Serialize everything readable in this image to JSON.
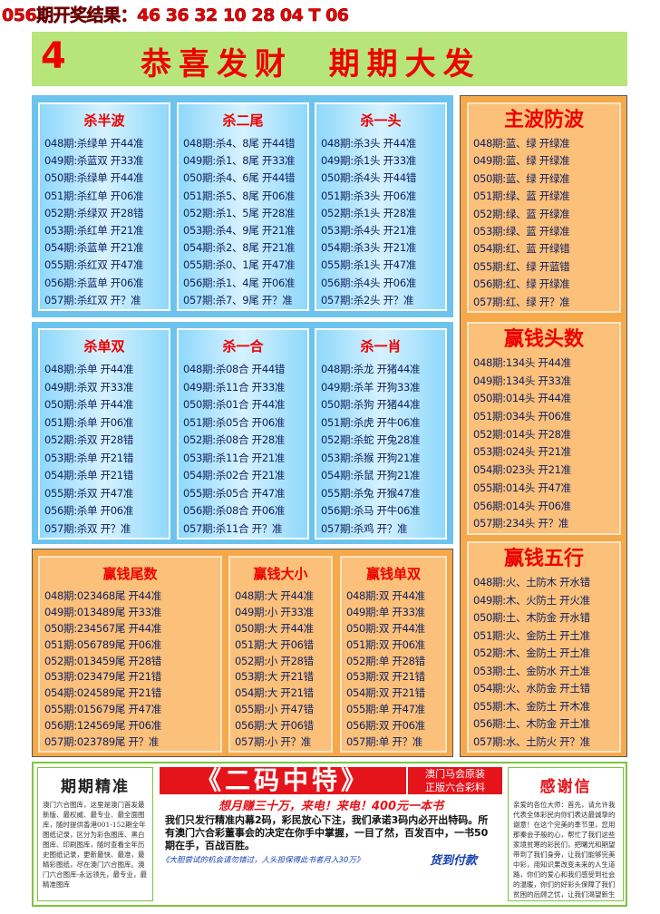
{
  "header": {
    "result": "056期开奖结果：46 36 32 10 28 04 T 06"
  },
  "banner": {
    "number": "4",
    "title": "恭喜发财  期期大发"
  },
  "panels": [
    {
      "title": "杀半波",
      "rows": [
        "048期:杀绿单 开44准",
        "049期:杀蓝双 开33准",
        "050期:杀绿单 开44准",
        "051期:杀红单 开06准",
        "052期:杀绿双 开28错",
        "053期:杀红单 开21准",
        "054期:杀蓝单 开21准",
        "055期:杀红双 开47准",
        "056期:杀蓝单 开06准",
        "057期:杀红双 开？准"
      ]
    },
    {
      "title": "杀二尾",
      "rows": [
        "048期:杀4、8尾 开44错",
        "049期:杀1、8尾 开33准",
        "050期:杀4、6尾 开44错",
        "051期:杀5、8尾 开06准",
        "052期:杀1、5尾 开28准",
        "053期:杀4、9尾 开21准",
        "054期:杀2、8尾 开21准",
        "055期:杀0、1尾 开47准",
        "056期:杀1、4尾 开06准",
        "057期:杀7、9尾 开？准"
      ]
    },
    {
      "title": "杀一头",
      "rows": [
        "048期:杀3头 开44准",
        "049期:杀1头 开33准",
        "050期:杀4头 开44错",
        "051期:杀3头 开06准",
        "052期:杀1头 开28准",
        "053期:杀4头 开21准",
        "054期:杀3头 开21准",
        "055期:杀1头 开47准",
        "056期:杀4头 开06准",
        "057期:杀2头 开？准"
      ]
    },
    {
      "title": "杀单双",
      "rows": [
        "048期:杀单 开44准",
        "049期:杀双 开33准",
        "050期:杀单 开44准",
        "051期:杀单 开06准",
        "052期:杀双 开28错",
        "053期:杀单 开21错",
        "054期:杀单 开21错",
        "055期:杀双 开47准",
        "056期:杀单 开06准",
        "057期:杀双 开？准"
      ]
    },
    {
      "title": "杀一合",
      "rows": [
        "048期:杀08合 开44错",
        "049期:杀11合 开33准",
        "050期:杀01合 开44准",
        "051期:杀05合 开06准",
        "052期:杀08合 开28准",
        "053期:杀11合 开21准",
        "054期:杀02合 开21准",
        "055期:杀05合 开47准",
        "056期:杀08合 开06准",
        "057期:杀11合 开？准"
      ]
    },
    {
      "title": "杀一肖",
      "rows": [
        "048期:杀龙 开猪44准",
        "049期:杀羊 开狗33准",
        "050期:杀狗 开猪44准",
        "051期:杀虎 开牛06准",
        "052期:杀蛇 开兔28准",
        "053期:杀猴 开狗21准",
        "054期:杀鼠 开狗21准",
        "055期:杀兔 开猴47准",
        "056期:杀马 开牛06准",
        "057期:杀鸡 开？准"
      ]
    },
    {
      "title": "主波防波",
      "rows": [
        "048期:蓝、绿 开绿准",
        "049期:蓝、绿 开绿准",
        "050期:蓝、绿 开绿准",
        "051期:绿、蓝 开绿准",
        "052期:绿、蓝 开绿准",
        "053期:绿、蓝 开绿准",
        "054期:红、蓝 开绿错",
        "055期:红、绿 开蓝错",
        "056期:红、绿 开绿准",
        "057期:红、绿 开？准"
      ]
    },
    {
      "title": "赢钱头数",
      "rows": [
        "048期:134头 开44准",
        "049期:134头 开33准",
        "050期:014头 开44准",
        "051期:034头 开06准",
        "052期:014头 开28准",
        "053期:024头 开21准",
        "054期:023头 开21准",
        "055期:014头 开47准",
        "056期:014头 开06准",
        "057期:234头 开？准"
      ]
    },
    {
      "title": "赢钱五行",
      "rows": [
        "048期:火、土防木 开水错",
        "049期:木、火防土 开火准",
        "050期:土、木防金 开水错",
        "051期:火、金防土 开土准",
        "052期:木、金防土 开土准",
        "053期:土、金防水 开土准",
        "054期:火、水防金 开土错",
        "055期:木、金防土 开木准",
        "056期:土、木防金 开土准",
        "057期:水、土防火 开？准"
      ]
    },
    {
      "title": "赢钱尾数",
      "rows": [
        "048期:023468尾 开44准",
        "049期:013489尾 开33准",
        "050期:234567尾 开44准",
        "051期:056789尾 开06准",
        "052期:013459尾 开28错",
        "053期:023479尾 开21错",
        "054期:024589尾 开21错",
        "055期:015679尾 开47准",
        "056期:124569尾 开06准",
        "057期:023789尾 开？准"
      ]
    },
    {
      "title": "赢钱大小",
      "rows": [
        "048期:大 开44准",
        "049期:小 开33准",
        "050期:大 开44准",
        "051期:大 开06错",
        "052期:小 开28错",
        "053期:大 开21错",
        "054期:大 开21错",
        "055期:小 开47错",
        "056期:大 开06错",
        "057期:小 开？准"
      ]
    },
    {
      "title": "赢钱单双",
      "rows": [
        "048期:双 开44准",
        "049期:单 开33准",
        "050期:双 开44准",
        "051期:双 开06准",
        "052期:单 开28错",
        "053期:双 开21错",
        "054期:双 开21错",
        "055期:单 开47准",
        "056期:双 开06准",
        "057期:单 开？准"
      ]
    }
  ],
  "footer": {
    "left": {
      "title": "期期精准",
      "text": "澳门六合图库，这里是澳门首发最新版、最权威、最专业、最全面图库，随时提供香港001-152期全年图纸记录，区分为彩色图库、黑白图库、印刷图库，随时查看全年历史图纸记录，更新最快、最准，最精彩图纸，尽在澳门六合图库。澳门六合图库-永远领先，最专业，最精准图库"
    },
    "ad": {
      "title": "《二码中特》",
      "tag1": "澳门马会原装",
      "tag2": "正版六合彩料",
      "slogan": "想月赚三十万，来电！来电！400元一本书",
      "body": "我们只发行精准内幕2码，彩民放心下注，我们承诺3码内必开出特码。所有澳门六合彩董事会的决定在你手中掌握，一目了然，百发百中，一书50期在手，百战百胜。",
      "note": "《大胆尝试的机会请勿错过，人头担保得此书者月入30万》",
      "cod": "货到付款"
    },
    "right": {
      "title": "感谢信",
      "text": "亲爱的各位大师：首先，请允许我代表全体彩民向你们表达最诚挚的谢意！在这个完美的季节里，您用那秦会子般的心，帮忙了我们这些家境贫寒的彩民们，把曙光和期望带到了我们身旁，让我们能够完美中彩，用知识果改变未来的人生道路，你们的爱心和我们感受到社会的温暖，你们的好彩头保障了我们贫困的后顾之忧，让我们渴望新生活的心在感受"
    }
  }
}
